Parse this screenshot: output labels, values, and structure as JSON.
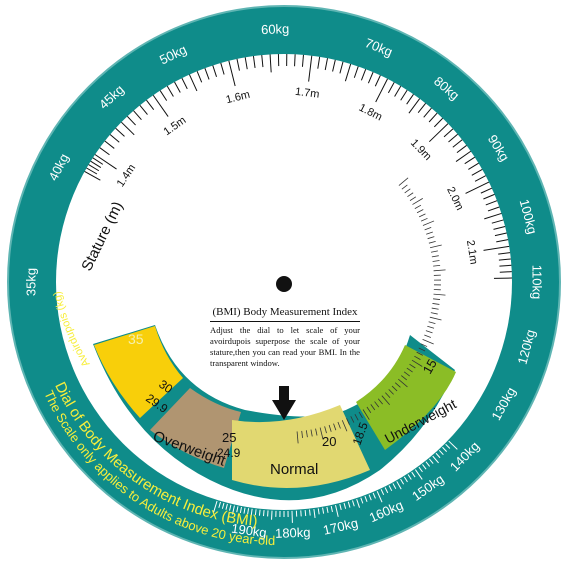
{
  "dial": {
    "title": "Dial of Body Measurement Index (BMI)",
    "subtitle": "The Scale only applies to Adults above 20 year-old",
    "weight_unit_label": "Avoirdupois (kg)",
    "stature_label": "Stature (m)",
    "colors": {
      "outer_ring": "#0f8c8a",
      "ring_text": "#ffffff",
      "yellow_text": "#f7ee3c",
      "obese_zone": "#f8cf0a",
      "overweight_zone": "#b09571",
      "normal_zone": "#e1d871",
      "underweight_zone": "#8bbd26",
      "window_frame": "#0f8c8a"
    },
    "weight_labels": [
      {
        "text": "35kg",
        "value": 35
      },
      {
        "text": "40kg",
        "value": 40
      },
      {
        "text": "45kg",
        "value": 45
      },
      {
        "text": "50kg",
        "value": 50
      },
      {
        "text": "60kg",
        "value": 60
      },
      {
        "text": "70kg",
        "value": 70
      },
      {
        "text": "80kg",
        "value": 80
      },
      {
        "text": "90kg",
        "value": 90
      },
      {
        "text": "100kg",
        "value": 100
      },
      {
        "text": "110kg",
        "value": 110
      },
      {
        "text": "120kg",
        "value": 120
      },
      {
        "text": "130kg",
        "value": 130
      },
      {
        "text": "140kg",
        "value": 140
      },
      {
        "text": "150kg",
        "value": 150
      },
      {
        "text": "160kg",
        "value": 160
      },
      {
        "text": "170kg",
        "value": 170
      },
      {
        "text": "180kg",
        "value": 180
      },
      {
        "text": "190kg",
        "value": 190
      }
    ],
    "stature_labels": [
      {
        "text": "1.4m",
        "value": 1.4
      },
      {
        "text": "1.5m",
        "value": 1.5
      },
      {
        "text": "1.6m",
        "value": 1.6
      },
      {
        "text": "1.7m",
        "value": 1.7
      },
      {
        "text": "1.8m",
        "value": 1.8
      },
      {
        "text": "1.9m",
        "value": 1.9
      },
      {
        "text": "2.0m",
        "value": 2.0
      },
      {
        "text": "2.1m",
        "value": 2.1
      }
    ],
    "window": {
      "title": "(BMI) Body Measurement Index",
      "instructions": "Adjust the dial to let scale of your avoirdupois superpose the scale of your stature,then you can read your BMI. In the transparent window.",
      "zones": [
        {
          "key": "obese",
          "label": "",
          "color": "#f8cf0a"
        },
        {
          "key": "overweight",
          "label": "Overweight",
          "color": "#b09571"
        },
        {
          "key": "normal",
          "label": "Normal",
          "color": "#e1d871"
        },
        {
          "key": "underweight",
          "label": "Underweight",
          "color": "#8bbd26"
        }
      ],
      "bmi_tick_labels": [
        {
          "text": "35",
          "value": 35
        },
        {
          "text": "30",
          "value": 30
        },
        {
          "text": "29.9",
          "value": 29.9
        },
        {
          "text": "25",
          "value": 25
        },
        {
          "text": "24.9",
          "value": 24.9
        },
        {
          "text": "20",
          "value": 20
        },
        {
          "text": "18.5",
          "value": 18.5
        },
        {
          "text": "15",
          "value": 15
        }
      ]
    }
  }
}
